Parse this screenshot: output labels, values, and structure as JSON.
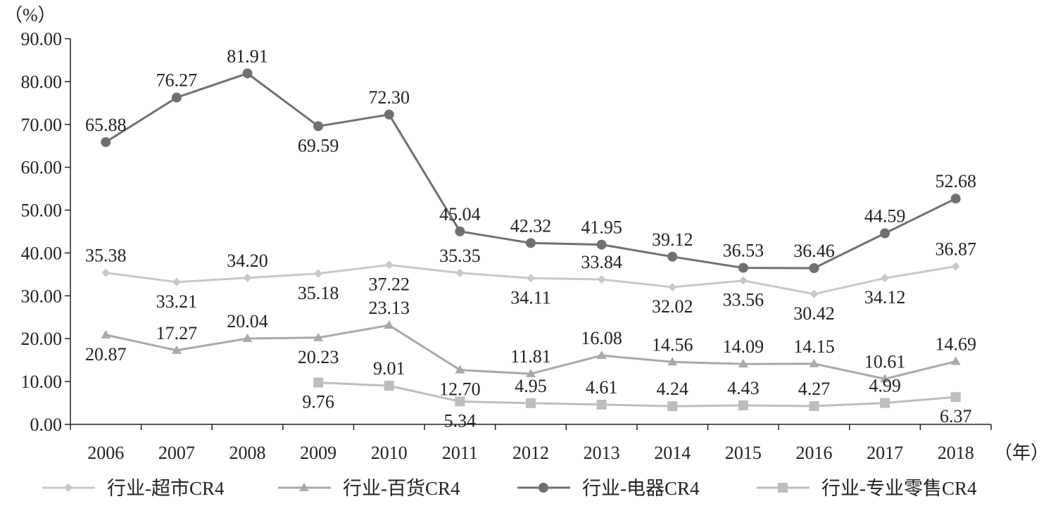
{
  "chart_data": {
    "type": "line",
    "ylabel": "（%）",
    "xlabel": "（年）",
    "ylim": [
      0,
      90
    ],
    "yticks": [
      "0.00",
      "10.00",
      "20.00",
      "30.00",
      "40.00",
      "50.00",
      "60.00",
      "70.00",
      "80.00",
      "90.00"
    ],
    "categories": [
      "2006",
      "2007",
      "2008",
      "2009",
      "2010",
      "2011",
      "2012",
      "2013",
      "2014",
      "2015",
      "2016",
      "2017",
      "2018"
    ],
    "grid": false,
    "legend_position": "bottom",
    "series": [
      {
        "name": "行业-超市CR4",
        "marker": "diamond",
        "color": "#c8c8c8",
        "values": [
          35.38,
          33.21,
          34.2,
          35.18,
          37.22,
          35.35,
          34.11,
          33.84,
          32.02,
          33.56,
          30.42,
          34.12,
          36.87
        ],
        "labels": [
          "35.38",
          "33.21",
          "34.20",
          "35.18",
          "37.22",
          "35.35",
          "34.11",
          "33.84",
          "32.02",
          "33.56",
          "30.42",
          "34.12",
          "36.87"
        ]
      },
      {
        "name": "行业-百货CR4",
        "marker": "triangle",
        "color": "#a9a9a9",
        "values": [
          20.87,
          17.27,
          20.04,
          20.23,
          23.13,
          12.7,
          11.81,
          16.08,
          14.56,
          14.09,
          14.15,
          10.61,
          14.69
        ],
        "labels": [
          "20.87",
          "17.27",
          "20.04",
          "20.23",
          "23.13",
          "12.70",
          "11.81",
          "16.08",
          "14.56",
          "14.09",
          "14.15",
          "10.61",
          "14.69"
        ]
      },
      {
        "name": "行业-电器CR4",
        "marker": "circle",
        "color": "#707070",
        "values": [
          65.88,
          76.27,
          81.91,
          69.59,
          72.3,
          45.04,
          42.32,
          41.95,
          39.12,
          36.53,
          36.46,
          44.59,
          52.68
        ],
        "labels": [
          "65.88",
          "76.27",
          "81.91",
          "69.59",
          "72.30",
          "45.04",
          "42.32",
          "41.95",
          "39.12",
          "36.53",
          "36.46",
          "44.59",
          "52.68"
        ]
      },
      {
        "name": "行业-专业零售CR4",
        "marker": "square",
        "color": "#bdbdbd",
        "values": [
          null,
          null,
          null,
          9.76,
          9.01,
          5.34,
          4.95,
          4.61,
          4.24,
          4.43,
          4.27,
          4.99,
          6.37
        ],
        "labels": [
          null,
          null,
          null,
          "9.76",
          "9.01",
          "5.34",
          "4.95",
          "4.61",
          "4.24",
          "4.43",
          "4.27",
          "4.99",
          "6.37"
        ]
      }
    ]
  }
}
